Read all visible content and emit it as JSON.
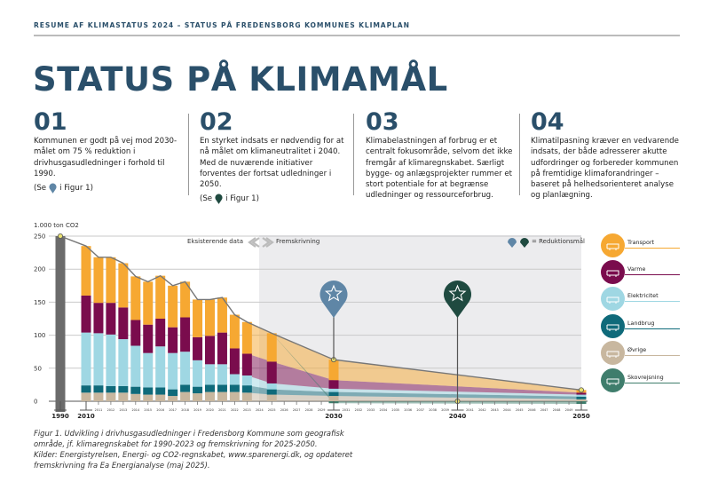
{
  "header": {
    "running_title": "RESUME AF KLIMASTATUS 2024 – STATUS PÅ FREDENSBORG KOMMUNES KLIMAPLAN"
  },
  "page_title": "STATUS PÅ KLIMAMÅL",
  "columns": [
    {
      "number": "01",
      "text": "Kommunen er godt på vej mod 2030-målet om 75 % reduktion i drivhusgasudledninger i forhold til 1990.",
      "see_before": "(Se",
      "see_after": "i Figur 1)",
      "pin_color": "#5f86a6"
    },
    {
      "number": "02",
      "text": "En styrket indsats er nødvendig for at nå målet om klimaneutralitet i 2040. Med de nuværende initiativer forventes der fortsat udledninger i 2050.",
      "see_before": "(Se",
      "see_after": "i Figur 1)",
      "pin_color": "#1f4a40"
    },
    {
      "number": "03",
      "text": "Klimabelastningen af forbrug er et centralt fokusområde, selvom det ikke fremgår af klimaregnskabet. Særligt bygge- og anlægsprojekter rummer et stort potentiale for at begrænse udledninger og ressourceforbrug."
    },
    {
      "number": "04",
      "text": "Klimatilpasning kræver en vedvarende indsats, der både adresserer akutte udfordringer og forbereder kommunen på fremtidige klimaforandringer – baseret på helhedsorienteret analyse og planlægning."
    }
  ],
  "chart_data": {
    "type": "bar",
    "stacked": true,
    "ylabel": "1.000 ton CO2",
    "ylim": [
      0,
      250
    ],
    "yticks": [
      "0",
      "50",
      "100",
      "150",
      "200",
      "250"
    ],
    "grid": true,
    "annotations": {
      "existing": "Eksisterende data",
      "projection": "Fremskrivning",
      "targets": "= Reduktionsmål"
    },
    "baseline": {
      "year": "1990",
      "value": 250,
      "color": "#6b6b6b"
    },
    "years": [
      2010,
      2011,
      2012,
      2013,
      2014,
      2015,
      2016,
      2017,
      2018,
      2019,
      2020,
      2021,
      2022,
      2023,
      2025,
      2030,
      2050
    ],
    "projection_years": [
      2025,
      2030,
      2050
    ],
    "series": [
      {
        "name": "Øvrige",
        "color": "#c8b79f",
        "values": [
          13,
          13,
          13,
          13,
          11,
          10,
          10,
          8,
          14,
          12,
          14,
          14,
          14,
          13,
          10,
          8,
          3
        ]
      },
      {
        "name": "Landbrug",
        "color": "#0f6a7a",
        "values": [
          11,
          11,
          10,
          10,
          11,
          11,
          11,
          10,
          11,
          10,
          11,
          11,
          11,
          11,
          8,
          6,
          4
        ]
      },
      {
        "name": "Elektricitet",
        "color": "#9fd7e3",
        "values": [
          80,
          79,
          78,
          71,
          62,
          52,
          62,
          55,
          50,
          40,
          31,
          31,
          16,
          15,
          9,
          5,
          3
        ]
      },
      {
        "name": "Varme",
        "color": "#7a0c4d",
        "values": [
          56,
          46,
          48,
          48,
          39,
          43,
          42,
          39,
          52,
          35,
          43,
          48,
          39,
          33,
          33,
          13,
          3
        ]
      },
      {
        "name": "Transport",
        "color": "#f6a832",
        "values": [
          75,
          69,
          69,
          67,
          66,
          65,
          65,
          63,
          54,
          57,
          55,
          53,
          51,
          48,
          43,
          31,
          4
        ]
      },
      {
        "name": "Skovrejsning",
        "color": "#3f7d6c",
        "values": [
          0,
          0,
          0,
          0,
          0,
          0,
          0,
          0,
          0,
          0,
          0,
          0,
          0,
          0,
          0,
          -3,
          -4
        ]
      }
    ],
    "targets": [
      {
        "year": 2030,
        "value": 63,
        "color": "#5f86a6"
      },
      {
        "year": 2040,
        "value": 0,
        "color": "#1f4a40"
      }
    ],
    "x_major_labels": [
      "1990",
      "2010",
      "2030",
      "2040",
      "2050"
    ],
    "x_minor_labels": [
      "2011",
      "2012",
      "2013",
      "2014",
      "2015",
      "2016",
      "2017",
      "2018",
      "2019",
      "2020",
      "2021",
      "2022",
      "2023",
      "2024",
      "2025",
      "2026",
      "2027",
      "2028",
      "2029",
      "2031",
      "2032",
      "2033",
      "2034",
      "2035",
      "2036",
      "2037",
      "2038",
      "2039",
      "2041",
      "2042",
      "2043",
      "2044",
      "2045",
      "2046",
      "2047",
      "2048",
      "2049"
    ]
  },
  "legend": [
    {
      "label": "Transport",
      "color": "#f6a832",
      "icon": "bus-icon"
    },
    {
      "label": "Varme",
      "color": "#7a0c4d",
      "icon": "factory-icon"
    },
    {
      "label": "Elektricitet",
      "color": "#9fd7e3",
      "icon": "wind-turbine-icon"
    },
    {
      "label": "Landbrug",
      "color": "#0f6a7a",
      "icon": "farm-icon"
    },
    {
      "label": "Øvrige",
      "color": "#c8b79f",
      "icon": "other-icon"
    },
    {
      "label": "Skovrejsning",
      "color": "#3f7d6c",
      "icon": "trees-icon"
    }
  ],
  "caption": {
    "line1": "Figur 1. Udvikling i drivhusgasudledninger i Fredensborg Kommune som geografisk",
    "line2": "område, jf. klimaregnskabet for 1990-2023 og fremskrivning for 2025-2050.",
    "line3": "Kilder: Energistyrelsen, Energi- og CO2-regnskabet, www.sparenergi.dk, og opdateret",
    "line4": "fremskrivning fra Ea Energianalyse (maj 2025)."
  }
}
